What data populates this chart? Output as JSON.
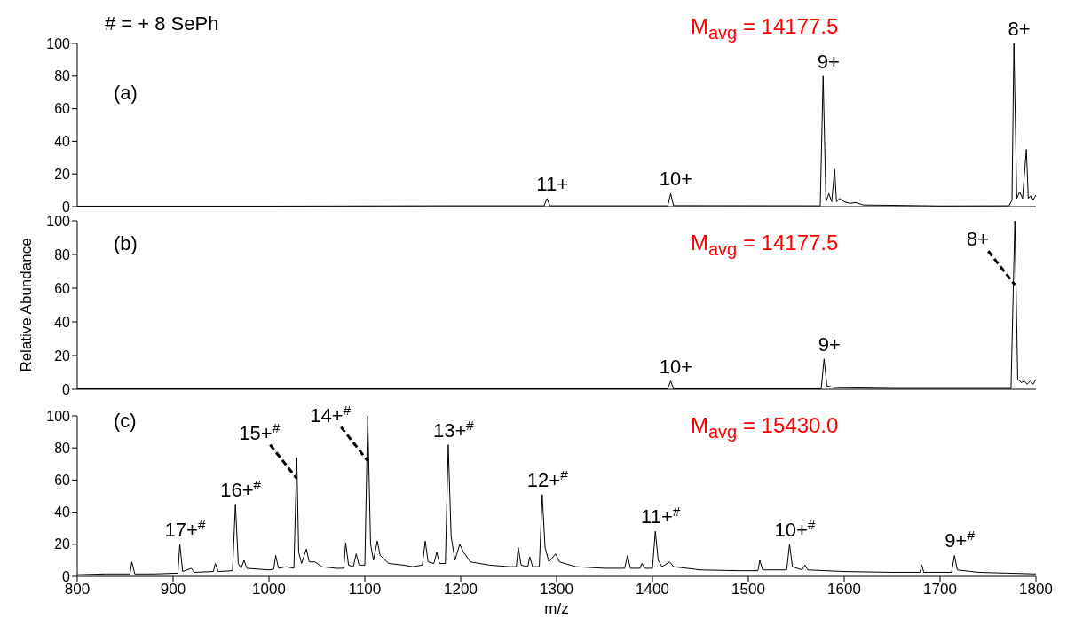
{
  "chart_data": [
    {
      "type": "line",
      "title": "(a)",
      "subtitle": "M$_{avg}$ = 14177.5",
      "xlim": [
        800,
        1800
      ],
      "ylim": [
        0,
        100
      ],
      "yticks": [
        0,
        20,
        40,
        60,
        80,
        100
      ],
      "tick_labels": "y",
      "series": [
        {
          "color": "#000000",
          "x": [
            800,
            1000,
            1180,
            1287,
            1290,
            1293,
            1416,
            1419,
            1422,
            1575,
            1578,
            1581,
            1584,
            1587,
            1590,
            1592,
            1595,
            1600,
            1606,
            1612,
            1620,
            1650,
            1700,
            1772,
            1775,
            1777,
            1780,
            1783,
            1786,
            1790,
            1792,
            1795,
            1797,
            1800
          ],
          "values": [
            0.3,
            0.3,
            0.5,
            0.5,
            5,
            0.5,
            0.5,
            8,
            0.6,
            0.5,
            80,
            3,
            8,
            3,
            23,
            3,
            5,
            3,
            2,
            2.5,
            1,
            0.8,
            0.4,
            0.5,
            4,
            100,
            5,
            9,
            5,
            35,
            5,
            7,
            4,
            7
          ]
        }
      ],
      "annotations": [
        "# = + 8 SePh",
        {
          "text": "11+",
          "x": 1290,
          "y": 5
        },
        {
          "text": "10+",
          "x": 1419,
          "y": 8
        },
        {
          "text": "9+",
          "x": 1578,
          "y": 80
        },
        {
          "text": "8+",
          "x": 1777,
          "y": 100
        }
      ]
    },
    {
      "type": "line",
      "title": "(b)",
      "subtitle": "M$_{avg}$ = 14177.5",
      "ylabel": "Relative Abundance",
      "xlim": [
        800,
        1800
      ],
      "ylim": [
        0,
        100
      ],
      "yticks": [
        0,
        20,
        40,
        60,
        80,
        100
      ],
      "tick_labels": "y",
      "series": [
        {
          "color": "#000000",
          "x": [
            800,
            1416,
            1419,
            1422,
            1576,
            1579,
            1582,
            1590,
            1650,
            1774,
            1778,
            1781,
            1785,
            1788,
            1791,
            1794,
            1797,
            1800
          ],
          "values": [
            0.3,
            0.3,
            5,
            0.3,
            0.3,
            18,
            2,
            1,
            0.5,
            0.5,
            100,
            6,
            4,
            5,
            3,
            5,
            3,
            6
          ]
        }
      ],
      "annotations": [
        {
          "text": "10+",
          "x": 1419,
          "y": 5
        },
        {
          "text": "9+",
          "x": 1579,
          "y": 18
        },
        {
          "text": "8+",
          "x": 1778,
          "y": 62
        }
      ]
    },
    {
      "type": "line",
      "title": "(c)",
      "subtitle": "M$_{avg}$ = 15430.0",
      "xlabel": "m/z",
      "xlim": [
        800,
        1800
      ],
      "ylim": [
        0,
        100
      ],
      "xticks": [
        800,
        900,
        1000,
        1100,
        1200,
        1300,
        1400,
        1500,
        1600,
        1700,
        1800
      ],
      "yticks": [
        0,
        20,
        40,
        60,
        80,
        100
      ],
      "series": [
        {
          "color": "#000000",
          "x": [
            800,
            830,
            855,
            857,
            860,
            880,
            905,
            907,
            910,
            919,
            922,
            942,
            944,
            947,
            962,
            965,
            968,
            971,
            974,
            977,
            1000,
            1005,
            1007,
            1010,
            1018,
            1026,
            1029,
            1031,
            1034,
            1039,
            1042,
            1048,
            1055,
            1070,
            1078,
            1080,
            1083,
            1088,
            1091,
            1094,
            1100,
            1103,
            1106,
            1109,
            1113,
            1116,
            1125,
            1140,
            1150,
            1160,
            1163,
            1166,
            1172,
            1175,
            1178,
            1184,
            1187,
            1190,
            1194,
            1199,
            1203,
            1210,
            1230,
            1250,
            1258,
            1260,
            1263,
            1270,
            1272,
            1275,
            1282,
            1285,
            1288,
            1292,
            1299,
            1303,
            1320,
            1350,
            1371,
            1374,
            1377,
            1387,
            1389,
            1392,
            1400,
            1403,
            1406,
            1410,
            1418,
            1422,
            1450,
            1490,
            1510,
            1512,
            1515,
            1540,
            1543,
            1546,
            1556,
            1559,
            1562,
            1600,
            1650,
            1679,
            1681,
            1683,
            1712,
            1715,
            1718,
            1740,
            1770,
            1800
          ],
          "values": [
            1,
            1.5,
            1.5,
            9,
            1.5,
            1.5,
            2,
            20,
            3,
            5,
            2.5,
            3,
            8,
            3,
            3.5,
            45,
            8,
            5,
            10,
            5,
            4,
            4.5,
            13,
            5,
            6,
            5,
            74,
            15,
            8,
            17,
            9,
            9,
            6,
            5,
            5,
            21,
            7,
            6,
            14,
            7,
            7,
            100,
            20,
            10,
            22,
            13,
            8,
            7,
            6,
            7,
            22,
            9,
            8,
            15,
            8,
            8,
            82,
            25,
            10,
            20,
            15,
            9,
            7,
            6,
            6,
            18,
            7,
            6,
            12,
            6,
            6,
            51,
            18,
            9,
            14,
            9,
            6,
            5,
            5,
            13,
            5,
            5,
            8,
            5,
            5,
            28,
            10,
            6,
            9,
            6,
            4,
            3.5,
            3.5,
            10,
            4,
            4,
            20,
            6,
            4,
            7,
            4,
            3,
            2.5,
            2.5,
            7,
            2.5,
            2.5,
            13,
            4,
            2.5,
            2,
            1.5
          ]
        }
      ],
      "annotations": [
        {
          "text": "17+$^{#}$",
          "x": 907,
          "y": 20
        },
        {
          "text": "16+$^{#}$",
          "x": 965,
          "y": 45
        },
        {
          "text": "15+$^{#}$",
          "x": 1029,
          "y": 61
        },
        {
          "text": "14+$^{#}$",
          "x": 1103,
          "y": 72
        },
        {
          "text": "13+$^{#}$",
          "x": 1187,
          "y": 82
        },
        {
          "text": "12+$^{#}$",
          "x": 1285,
          "y": 51
        },
        {
          "text": "11+$^{#}$",
          "x": 1403,
          "y": 28
        },
        {
          "text": "10+$^{#}$",
          "x": 1543,
          "y": 20
        },
        {
          "text": "9+$^{#}$",
          "x": 1715,
          "y": 13
        }
      ]
    }
  ]
}
